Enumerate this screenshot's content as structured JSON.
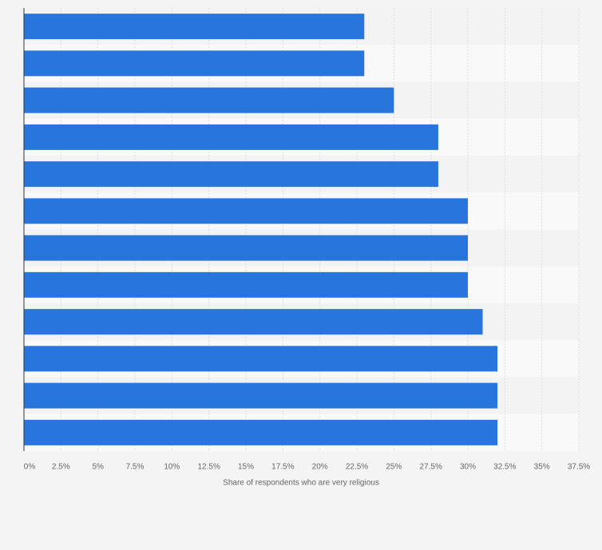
{
  "chart_data": {
    "type": "bar",
    "orientation": "horizontal",
    "x_label": "Share of respondents who are very religious",
    "categories": [
      null,
      null,
      null,
      null,
      null,
      null,
      null,
      null,
      null,
      null,
      null,
      null
    ],
    "values": [
      23,
      23,
      25,
      28,
      28,
      30,
      30,
      30,
      31,
      32,
      32,
      32
    ],
    "color": "#2876dd",
    "xlim": [
      0,
      37.5
    ],
    "xticks": [
      {
        "value": 0,
        "label": "0%"
      },
      {
        "value": 2.5,
        "label": "2.5%"
      },
      {
        "value": 5,
        "label": "5%"
      },
      {
        "value": 7.5,
        "label": "7.5%"
      },
      {
        "value": 10,
        "label": "10%"
      },
      {
        "value": 12.5,
        "label": "12.5%"
      },
      {
        "value": 15,
        "label": "15%"
      },
      {
        "value": 17.5,
        "label": "17.5%"
      },
      {
        "value": 20,
        "label": "20%"
      },
      {
        "value": 22.5,
        "label": "22.5%"
      },
      {
        "value": 25,
        "label": "25%"
      },
      {
        "value": 27.5,
        "label": "27.5%"
      },
      {
        "value": 30,
        "label": "30%"
      },
      {
        "value": 32.5,
        "label": "32.5%"
      },
      {
        "value": 35,
        "label": "35%"
      },
      {
        "value": 37.5,
        "label": "37.5%"
      }
    ],
    "grid": true
  }
}
